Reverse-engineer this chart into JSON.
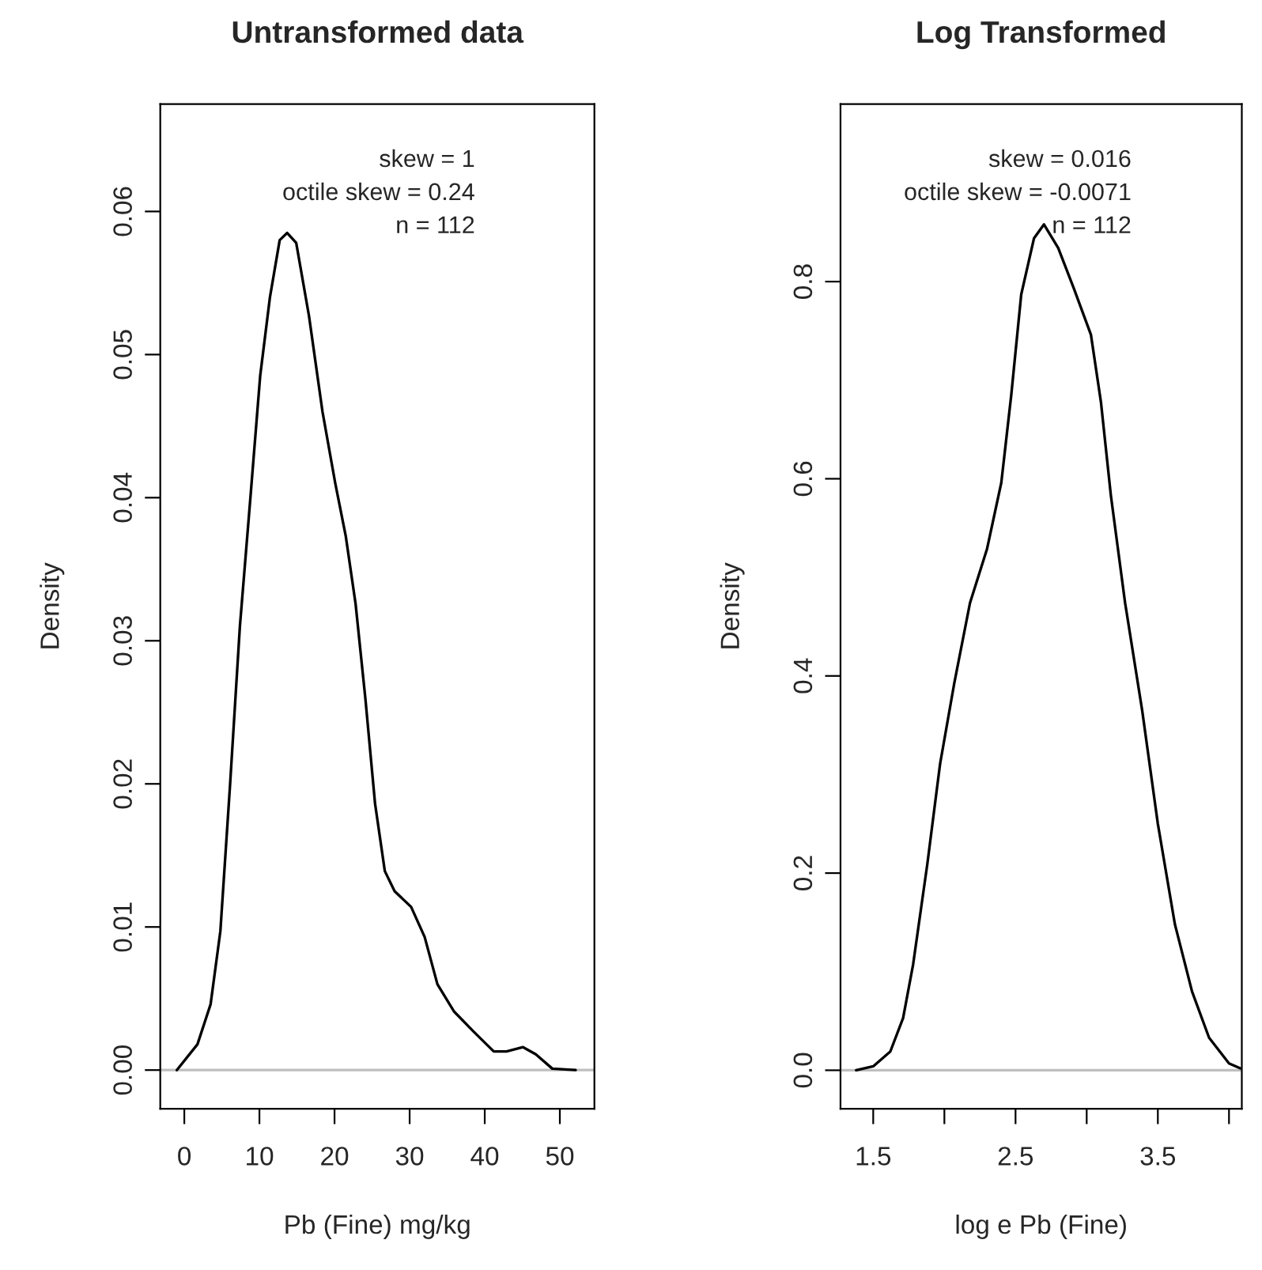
{
  "chart_data": [
    {
      "type": "line",
      "title": "Untransformed data",
      "xlabel": "Pb (Fine) mg/kg",
      "ylabel": "Density",
      "annotations": [
        "skew = 1",
        "octile skew = 0.24",
        "n = 112"
      ],
      "xlim": [
        -3.2,
        54.6
      ],
      "ylim": [
        -0.0027,
        0.0675
      ],
      "xticks": [
        0,
        10,
        20,
        30,
        40,
        50
      ],
      "yticks": [
        {
          "value": 0,
          "label": "0.00"
        },
        {
          "value": 0.01,
          "label": "0.01"
        },
        {
          "value": 0.02,
          "label": "0.02"
        },
        {
          "value": 0.03,
          "label": "0.03"
        },
        {
          "value": 0.04,
          "label": "0.04"
        },
        {
          "value": 0.05,
          "label": "0.05"
        },
        {
          "value": 0.06,
          "label": "0.06"
        }
      ],
      "ref_lines": [
        {
          "axis": "y",
          "value": 0,
          "color": "#bebebe"
        }
      ],
      "grid": false,
      "legend": false,
      "series": [
        {
          "color": "#000000",
          "x": [
            -1,
            1.75,
            3.5,
            4.8,
            6.1,
            7.4,
            8.8,
            10.1,
            11.4,
            12.7,
            13.7,
            14.9,
            16.6,
            18.4,
            20.1,
            21.5,
            22.8,
            24.1,
            25.4,
            26.7,
            28.0,
            30.2,
            32.0,
            33.7,
            35.9,
            38.5,
            41.2,
            42.9,
            45.1,
            46.8,
            49.0,
            52.1
          ],
          "values": [
            0,
            0.0018,
            0.0046,
            0.0097,
            0.02,
            0.031,
            0.04,
            0.0485,
            0.054,
            0.058,
            0.0585,
            0.0578,
            0.0527,
            0.046,
            0.041,
            0.0373,
            0.0326,
            0.026,
            0.0186,
            0.0139,
            0.0125,
            0.0114,
            0.0093,
            0.006,
            0.0041,
            0.0027,
            0.0013,
            0.0013,
            0.0016,
            0.0011,
            0.0001,
            0
          ]
        }
      ]
    },
    {
      "type": "line",
      "title": "Log Transformed",
      "xlabel": "log e Pb (Fine)",
      "ylabel": "Density",
      "annotations": [
        "skew = 0.016",
        "octile skew = -0.0071",
        "n = 112"
      ],
      "xlim": [
        1.27,
        4.09
      ],
      "ylim": [
        -0.039,
        0.98
      ],
      "xticks": [
        1.5,
        {
          "value": 2.0,
          "label": null
        },
        2.5,
        {
          "value": 3.0,
          "label": null
        },
        3.5,
        {
          "value": 4.0,
          "label": null
        }
      ],
      "yticks": [
        {
          "value": 0,
          "label": "0.0"
        },
        0.2,
        0.4,
        0.6,
        0.8
      ],
      "ref_lines": [
        {
          "axis": "y",
          "value": 0,
          "color": "#bebebe"
        }
      ],
      "grid": false,
      "legend": false,
      "series": [
        {
          "color": "#000000",
          "x": [
            1.38,
            1.5,
            1.62,
            1.71,
            1.78,
            1.88,
            1.97,
            2.07,
            2.18,
            2.3,
            2.4,
            2.47,
            2.54,
            2.63,
            2.7,
            2.8,
            2.91,
            3.03,
            3.1,
            3.17,
            3.27,
            3.39,
            3.5,
            3.62,
            3.74,
            3.86,
            4.0,
            4.08
          ],
          "values": [
            0,
            0.004,
            0.019,
            0.053,
            0.107,
            0.209,
            0.311,
            0.393,
            0.474,
            0.529,
            0.596,
            0.685,
            0.787,
            0.844,
            0.858,
            0.834,
            0.793,
            0.746,
            0.678,
            0.583,
            0.474,
            0.365,
            0.25,
            0.148,
            0.08,
            0.033,
            0.007,
            0.002
          ]
        }
      ]
    }
  ]
}
